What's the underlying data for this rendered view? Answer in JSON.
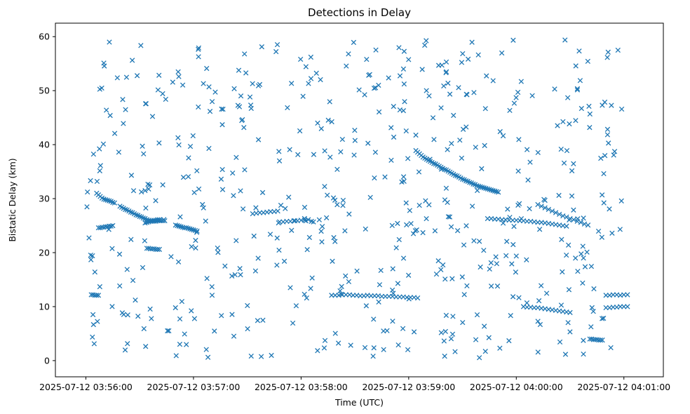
{
  "chart_data": {
    "type": "scatter",
    "title": "Detections in Delay",
    "xlabel": "Time (UTC)",
    "ylabel": "Bistatic Delay (km)",
    "marker": "x",
    "color": "#1f77b4",
    "x_unit": "seconds since 2025-07-12 03:56:00",
    "xlim": [
      -17,
      322
    ],
    "ylim": [
      -3,
      62.5
    ],
    "x_ticks": [
      {
        "value": 0,
        "label": "2025-07-12 03:56:00"
      },
      {
        "value": 60,
        "label": "2025-07-12 03:57:00"
      },
      {
        "value": 120,
        "label": "2025-07-12 03:58:00"
      },
      {
        "value": 180,
        "label": "2025-07-12 03:59:00"
      },
      {
        "value": 240,
        "label": "2025-07-12 04:00:00"
      },
      {
        "value": 300,
        "label": "2025-07-12 04:01:00"
      }
    ],
    "y_ticks": [
      {
        "value": 0,
        "label": "0"
      },
      {
        "value": 10,
        "label": "10"
      },
      {
        "value": 20,
        "label": "20"
      },
      {
        "value": 30,
        "label": "30"
      },
      {
        "value": 40,
        "label": "40"
      },
      {
        "value": 50,
        "label": "50"
      },
      {
        "value": 60,
        "label": "60"
      }
    ],
    "tracks": [
      {
        "name": "track-a",
        "x": [
          6,
          7,
          8,
          9,
          10,
          11,
          12,
          13,
          14,
          15,
          16
        ],
        "y": [
          31.0,
          30.7,
          30.4,
          30.1,
          29.9,
          29.8,
          29.7,
          29.6,
          29.5,
          29.3,
          29.2
        ]
      },
      {
        "name": "track-b",
        "x": [
          19,
          20,
          21,
          22,
          23,
          24,
          25,
          26,
          27,
          28,
          29,
          30,
          31,
          32,
          33,
          34,
          35,
          36,
          37,
          38,
          39,
          40,
          41,
          42,
          43,
          44
        ],
        "y": [
          28.6,
          28.4,
          28.2,
          28.0,
          27.9,
          27.7,
          27.5,
          27.4,
          27.2,
          27.0,
          26.9,
          26.7,
          26.6,
          26.4,
          26.3,
          26.1,
          26.0,
          25.9,
          25.8,
          25.8,
          25.8,
          25.9,
          25.9,
          25.9,
          25.9,
          25.9
        ]
      },
      {
        "name": "track-c",
        "x": [
          33,
          34,
          35,
          36,
          37,
          38,
          39,
          40,
          41
        ],
        "y": [
          25.5,
          25.6,
          25.7,
          25.8,
          25.9,
          26.0,
          26.0,
          26.1,
          26.1
        ]
      },
      {
        "name": "track-d",
        "x": [
          7,
          8,
          9,
          10,
          11,
          12,
          13,
          14,
          15
        ],
        "y": [
          24.6,
          24.6,
          24.7,
          24.7,
          24.8,
          24.8,
          24.9,
          24.9,
          25.0
        ]
      },
      {
        "name": "track-e",
        "x": [
          34,
          35,
          36,
          37,
          38,
          39,
          40,
          41
        ],
        "y": [
          20.8,
          20.8,
          20.7,
          20.7,
          20.7,
          20.6,
          20.6,
          20.6
        ]
      },
      {
        "name": "track-f",
        "x": [
          50,
          51,
          52,
          53,
          54,
          55,
          56,
          57,
          58,
          59,
          60,
          61,
          62
        ],
        "y": [
          25.1,
          25.0,
          24.9,
          24.8,
          24.7,
          24.6,
          24.6,
          24.5,
          24.4,
          24.3,
          24.2,
          24.1,
          24.0
        ]
      },
      {
        "name": "track-g",
        "x": [
          93,
          95,
          97,
          99,
          101,
          103,
          105,
          107
        ],
        "y": [
          27.2,
          27.3,
          27.4,
          27.4,
          27.5,
          27.6,
          27.6,
          27.7
        ]
      },
      {
        "name": "track-h",
        "x": [
          108,
          110,
          112,
          114,
          116,
          118,
          120,
          122,
          124
        ],
        "y": [
          25.7,
          25.7,
          25.8,
          25.8,
          25.9,
          25.9,
          26.0,
          26.0,
          26.1
        ]
      },
      {
        "name": "track-i",
        "x": [
          3,
          4,
          5,
          6,
          7
        ],
        "y": [
          12.2,
          12.2,
          12.1,
          12.1,
          12.1
        ]
      },
      {
        "name": "track-j",
        "x": [
          137,
          139,
          141,
          143,
          145,
          147,
          149,
          151,
          153,
          155,
          157,
          159,
          161,
          163,
          165,
          167,
          169,
          171,
          173,
          175,
          177,
          179,
          181,
          183,
          185
        ],
        "y": [
          12.1,
          12.1,
          12.1,
          12.2,
          12.2,
          12.2,
          12.1,
          12.1,
          12.0,
          12.0,
          12.1,
          12.0,
          12.0,
          12.0,
          11.9,
          11.9,
          11.9,
          11.9,
          11.8,
          11.8,
          11.8,
          11.7,
          11.7,
          11.7,
          11.6
        ]
      },
      {
        "name": "track-k",
        "x": [
          184,
          185,
          186,
          187,
          188,
          189,
          190,
          191,
          192,
          193,
          194,
          195,
          196,
          197,
          198,
          199,
          200,
          201,
          202,
          203,
          204,
          205,
          206,
          207,
          208,
          209,
          210,
          211,
          212,
          213,
          214,
          215,
          216,
          217,
          218,
          219,
          220,
          221,
          222,
          223,
          224,
          225,
          226,
          227,
          228,
          229,
          230
        ],
        "y": [
          38.9,
          38.6,
          38.3,
          38.0,
          37.7,
          37.5,
          37.3,
          37.1,
          36.9,
          36.7,
          36.5,
          36.4,
          36.2,
          36.0,
          35.8,
          35.6,
          35.4,
          35.3,
          35.1,
          34.9,
          34.7,
          34.5,
          34.3,
          34.2,
          34.0,
          33.8,
          33.6,
          33.5,
          33.3,
          33.2,
          33.0,
          32.9,
          32.7,
          32.6,
          32.4,
          32.3,
          32.2,
          32.1,
          32.0,
          31.9,
          31.8,
          31.7,
          31.6,
          31.5,
          31.4,
          31.3,
          31.2
        ]
      },
      {
        "name": "track-l",
        "x": [
          224,
          226,
          228,
          230,
          232,
          234,
          236,
          238,
          240,
          242,
          244,
          246,
          248,
          250,
          252,
          254,
          256,
          258,
          260,
          262,
          264,
          266,
          268
        ],
        "y": [
          26.3,
          26.3,
          26.2,
          26.2,
          26.1,
          26.1,
          26.0,
          26.0,
          26.0,
          25.9,
          25.9,
          25.8,
          25.8,
          25.7,
          25.6,
          25.6,
          25.5,
          25.4,
          25.3,
          25.2,
          25.1,
          25.0,
          24.9
        ]
      },
      {
        "name": "track-m",
        "x": [
          252,
          254,
          256,
          258,
          260,
          262,
          264,
          266,
          268,
          270,
          272,
          274,
          276,
          278,
          280
        ],
        "y": [
          28.9,
          28.6,
          28.3,
          28.0,
          27.7,
          27.4,
          27.1,
          26.8,
          26.6,
          26.3,
          26.1,
          25.8,
          25.6,
          25.3,
          25.1
        ]
      },
      {
        "name": "track-n",
        "x": [
          244,
          246,
          248,
          250,
          252,
          254,
          256,
          258,
          260,
          262,
          264,
          266,
          268,
          270
        ],
        "y": [
          10.0,
          9.9,
          9.9,
          9.8,
          9.8,
          9.7,
          9.6,
          9.5,
          9.4,
          9.3,
          9.2,
          9.1,
          9.0,
          8.9
        ]
      },
      {
        "name": "track-o",
        "x": [
          290,
          292,
          294,
          296,
          298,
          300,
          302
        ],
        "y": [
          12.1,
          12.1,
          12.2,
          12.2,
          12.1,
          12.2,
          12.2
        ]
      },
      {
        "name": "track-p",
        "x": [
          290,
          292,
          294,
          296,
          298,
          300,
          302
        ],
        "y": [
          9.8,
          9.8,
          9.9,
          9.9,
          10.0,
          10.0,
          10.0
        ]
      },
      {
        "name": "track-q",
        "x": [
          281,
          282,
          283,
          284,
          285,
          286,
          287,
          288
        ],
        "y": [
          4.0,
          4.0,
          3.9,
          3.9,
          3.9,
          3.8,
          3.8,
          3.8
        ]
      }
    ]
  }
}
